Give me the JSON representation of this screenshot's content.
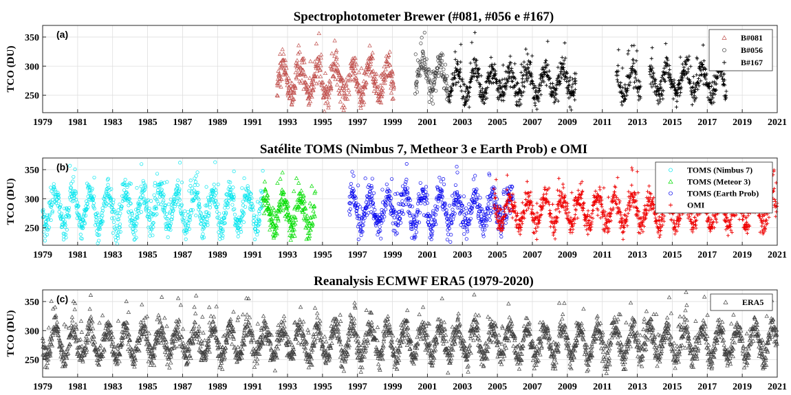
{
  "chart_data": [
    {
      "type": "scatter",
      "title": "Spectrophotometer Brewer  (#081, #056 e #167)",
      "panel_label": "(a)",
      "ylabel": "TCO (DU)",
      "xlabel": "",
      "xlim": [
        1979,
        2021
      ],
      "ylim": [
        220,
        370
      ],
      "xticks": [
        "1979",
        "1981",
        "1983",
        "1985",
        "1987",
        "1989",
        "1991",
        "1993",
        "1995",
        "1997",
        "1999",
        "2001",
        "2003",
        "2005",
        "2007",
        "2009",
        "2011",
        "2013",
        "2015",
        "2017",
        "2019",
        "2021"
      ],
      "yticks": [
        250,
        300,
        350
      ],
      "grid": true,
      "legend_position": "top-right",
      "series": [
        {
          "name": "B#081",
          "marker": "triangle",
          "color": "#c0504d",
          "x_range": [
            1992.4,
            1999.1
          ],
          "mean": 275,
          "amplitude": 28,
          "spread": 16
        },
        {
          "name": "B#056",
          "marker": "circle",
          "color": "#3c3c3c",
          "x_range": [
            2000.3,
            2002.2
          ],
          "mean": 282,
          "amplitude": 25,
          "spread": 17
        },
        {
          "name": "B#167",
          "marker": "plus",
          "color": "#000000",
          "x_range": [
            2002.2,
            2018.1
          ],
          "mean": 272,
          "amplitude": 22,
          "spread": 14
        }
      ],
      "gaps": [
        [
          2009.5,
          2011.8
        ],
        [
          2013.2,
          2013.7
        ]
      ]
    },
    {
      "type": "scatter",
      "title": "Satélite TOMS (Nimbus 7, Metheor 3 e Earth Prob) e OMI",
      "panel_label": "(b)",
      "ylabel": "TCO (DU)",
      "xlabel": "",
      "xlim": [
        1979,
        2021
      ],
      "ylim": [
        220,
        370
      ],
      "xticks": [
        "1979",
        "1981",
        "1983",
        "1985",
        "1987",
        "1989",
        "1991",
        "1993",
        "1995",
        "1997",
        "1999",
        "2001",
        "2003",
        "2005",
        "2007",
        "2009",
        "2011",
        "2013",
        "2015",
        "2017",
        "2019",
        "2021"
      ],
      "yticks": [
        250,
        300,
        350
      ],
      "grid": true,
      "legend_position": "top-right",
      "series": [
        {
          "name": "TOMS (Nimbus 7)",
          "marker": "circle",
          "color": "#00e5ee",
          "x_range": [
            1979.0,
            1991.6
          ],
          "mean": 283,
          "amplitude": 30,
          "spread": 15
        },
        {
          "name": "TOMS (Meteor 3)",
          "marker": "triangle",
          "color": "#00dd00",
          "x_range": [
            1991.6,
            1994.6
          ],
          "mean": 276,
          "amplitude": 22,
          "spread": 14
        },
        {
          "name": "TOMS (Earth Prob)",
          "marker": "circle",
          "color": "#0000ee",
          "x_range": [
            1996.5,
            2005.9
          ],
          "mean": 280,
          "amplitude": 26,
          "spread": 16
        },
        {
          "name": "OMI",
          "marker": "plus",
          "color": "#ee0000",
          "x_range": [
            2004.8,
            2021.0
          ],
          "mean": 278,
          "amplitude": 24,
          "spread": 13
        }
      ]
    },
    {
      "type": "scatter",
      "title": "Reanalysis ECMWF ERA5 (1979-2020)",
      "panel_label": "(c)",
      "ylabel": "TCO (DU)",
      "xlabel": "",
      "xlim": [
        1979,
        2021
      ],
      "ylim": [
        220,
        370
      ],
      "xticks": [
        "1979",
        "1981",
        "1983",
        "1985",
        "1987",
        "1989",
        "1991",
        "1993",
        "1995",
        "1997",
        "1999",
        "2001",
        "2003",
        "2005",
        "2007",
        "2009",
        "2011",
        "2013",
        "2015",
        "2017",
        "2019",
        "2021"
      ],
      "yticks": [
        250,
        300,
        350
      ],
      "grid": true,
      "legend_position": "top-right",
      "series": [
        {
          "name": "ERA5",
          "marker": "triangle",
          "color": "#404040",
          "x_range": [
            1979.0,
            2021.0
          ],
          "mean": 280,
          "amplitude": 26,
          "spread": 13
        }
      ]
    }
  ]
}
